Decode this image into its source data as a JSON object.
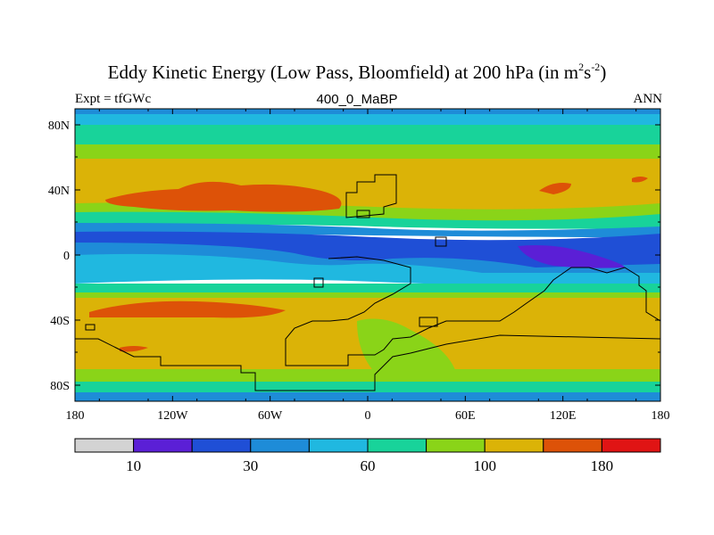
{
  "header": {
    "title_main": "Eddy Kinetic Energy (Low Pass, Bloomfield) at 200 hPa (in m",
    "title_sup1": "2",
    "title_mid": "s",
    "title_sup2": "-2",
    "title_end": ")",
    "left_label": "Expt = tfGWc",
    "center_label": "400_0_MaBP",
    "right_label": "ANN"
  },
  "axes": {
    "lat_labels": [
      "80N",
      "40N",
      "0",
      "40S",
      "80S"
    ],
    "lon_labels": [
      "180",
      "120W",
      "60W",
      "0",
      "60E",
      "120E",
      "180"
    ]
  },
  "colorbar": {
    "colors": [
      "#d3d3d3",
      "#5b1fd6",
      "#1f4fd6",
      "#1e8cd8",
      "#20b8e0",
      "#18d39a",
      "#8ad418",
      "#dbb307",
      "#dd5208",
      "#e01414"
    ],
    "labels": [
      "10",
      "30",
      "60",
      "100",
      "180"
    ]
  },
  "bands": {
    "top_to_bottom": [
      "#20b8e0",
      "#18d39a",
      "#8ad418",
      "#dbb307",
      "#8ad418",
      "#18d39a",
      "#1e8cd8",
      "#1f4fd6",
      "#1e8cd8",
      "#20b8e0",
      "#18d39a",
      "#8ad418",
      "#dbb307",
      "#8ad418",
      "#18d39a",
      "#1e8cd8"
    ]
  }
}
